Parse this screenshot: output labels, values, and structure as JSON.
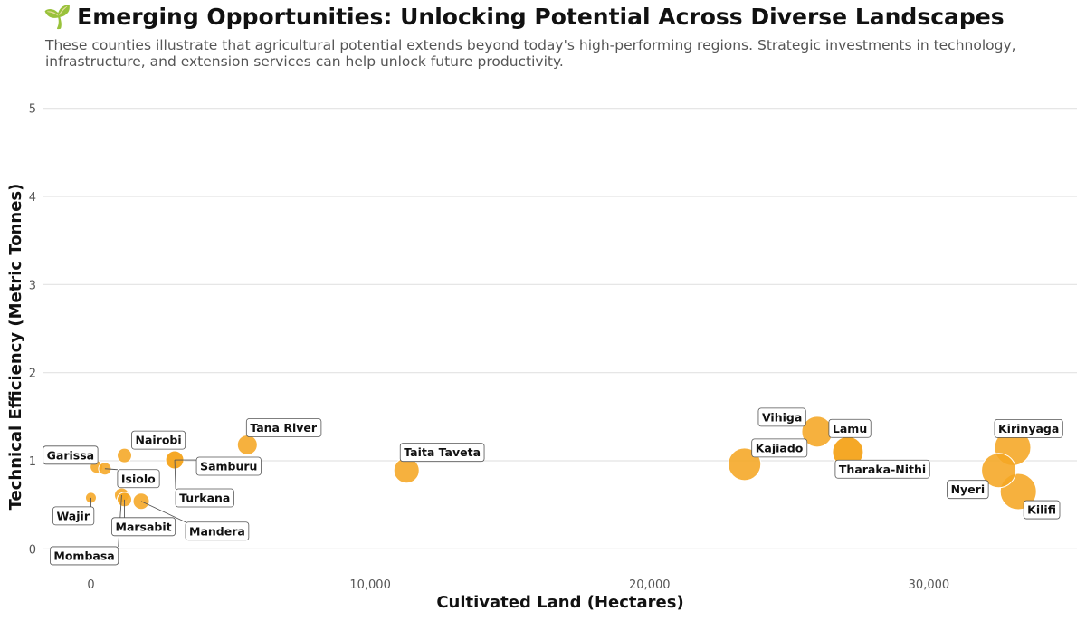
{
  "header": {
    "emoji": "🌱",
    "title": "Emerging Opportunities: Unlocking Potential Across Diverse Landscapes",
    "subtitle": "These counties illustrate that agricultural potential extends beyond today's high-performing regions. Strategic investments in technology, infrastructure, and extension services can help unlock future productivity."
  },
  "chart_data": {
    "type": "scatter",
    "title": "Emerging Opportunities: Unlocking Potential Across Diverse Landscapes",
    "xlabel": "Cultivated Land (Hectares)",
    "ylabel": "Technical Efficiency (Metric Tonnes)",
    "xlim": [
      -1700,
      35300
    ],
    "ylim": [
      -0.12,
      5.12
    ],
    "xticks": [
      0,
      10000,
      20000,
      30000
    ],
    "xtick_labels": [
      "0",
      "10,000",
      "20,000",
      "30,000"
    ],
    "yticks": [
      0,
      1,
      2,
      3,
      4,
      5
    ],
    "ytick_labels": [
      "0",
      "1",
      "2",
      "3",
      "4",
      "5"
    ],
    "grid": "horizontal",
    "marker_color": "#f5a623",
    "point_size_encoding": "bubble size increases with cultivated land",
    "points": [
      {
        "name": "Garissa",
        "x": 200,
        "y": 0.93,
        "size": 7,
        "label_pos": [
          -55,
          -13
        ],
        "label_anchor": "start"
      },
      {
        "name": "Wajir",
        "x": 0,
        "y": 0.58,
        "size": 6,
        "label_pos": [
          -38,
          20
        ],
        "label_anchor": "start"
      },
      {
        "name": "Isiolo",
        "x": 500,
        "y": 0.91,
        "size": 7,
        "label_pos": [
          18,
          11
        ],
        "label_anchor": "start"
      },
      {
        "name": "Nairobi",
        "x": 1200,
        "y": 1.06,
        "size": 8,
        "label_pos": [
          12,
          -17
        ],
        "label_anchor": "start"
      },
      {
        "name": "Mombasa",
        "x": 1100,
        "y": 0.61,
        "size": 8,
        "label_pos": [
          -75,
          67
        ],
        "label_anchor": "start"
      },
      {
        "name": "Marsabit",
        "x": 1200,
        "y": 0.56,
        "size": 8,
        "label_pos": [
          -10,
          30
        ],
        "label_anchor": "start"
      },
      {
        "name": "Mandera",
        "x": 1800,
        "y": 0.54,
        "size": 9,
        "label_pos": [
          53,
          33
        ],
        "label_anchor": "start"
      },
      {
        "name": "Samburu",
        "x": 3000,
        "y": 1.01,
        "size": 10,
        "label_pos": [
          28,
          7
        ],
        "label_anchor": "start"
      },
      {
        "name": "Turkana",
        "x": 3000,
        "y": 1.01,
        "size": 10,
        "label_pos": [
          5,
          42
        ],
        "label_anchor": "start"
      },
      {
        "name": "Tana River",
        "x": 5600,
        "y": 1.18,
        "size": 11,
        "label_pos": [
          3,
          -19
        ],
        "label_anchor": "start"
      },
      {
        "name": "Taita Taveta",
        "x": 11300,
        "y": 0.89,
        "size": 14,
        "label_pos": [
          -3,
          -20
        ],
        "label_anchor": "start"
      },
      {
        "name": "Kajiado",
        "x": 23400,
        "y": 0.96,
        "size": 18,
        "label_pos": [
          12,
          -18
        ],
        "label_anchor": "start"
      },
      {
        "name": "Vihiga",
        "x": 26000,
        "y": 1.33,
        "size": 17,
        "label_pos": [
          -61,
          -16
        ],
        "label_anchor": "start"
      },
      {
        "name": "Lamu",
        "x": 27100,
        "y": 1.1,
        "size": 17,
        "label_pos": [
          -17,
          -26
        ],
        "label_anchor": "start"
      },
      {
        "name": "Tharaka-Nithi",
        "x": 27100,
        "y": 1.1,
        "size": 17,
        "label_pos": [
          -10,
          19
        ],
        "label_anchor": "start"
      },
      {
        "name": "Nyeri",
        "x": 32500,
        "y": 0.89,
        "size": 19,
        "label_pos": [
          -53,
          21
        ],
        "label_anchor": "start"
      },
      {
        "name": "Kirinyaga",
        "x": 33000,
        "y": 1.15,
        "size": 20,
        "label_pos": [
          -16,
          -21
        ],
        "label_anchor": "start"
      },
      {
        "name": "Kilifi",
        "x": 33200,
        "y": 0.65,
        "size": 20,
        "label_pos": [
          10,
          20
        ],
        "label_anchor": "start"
      }
    ]
  }
}
